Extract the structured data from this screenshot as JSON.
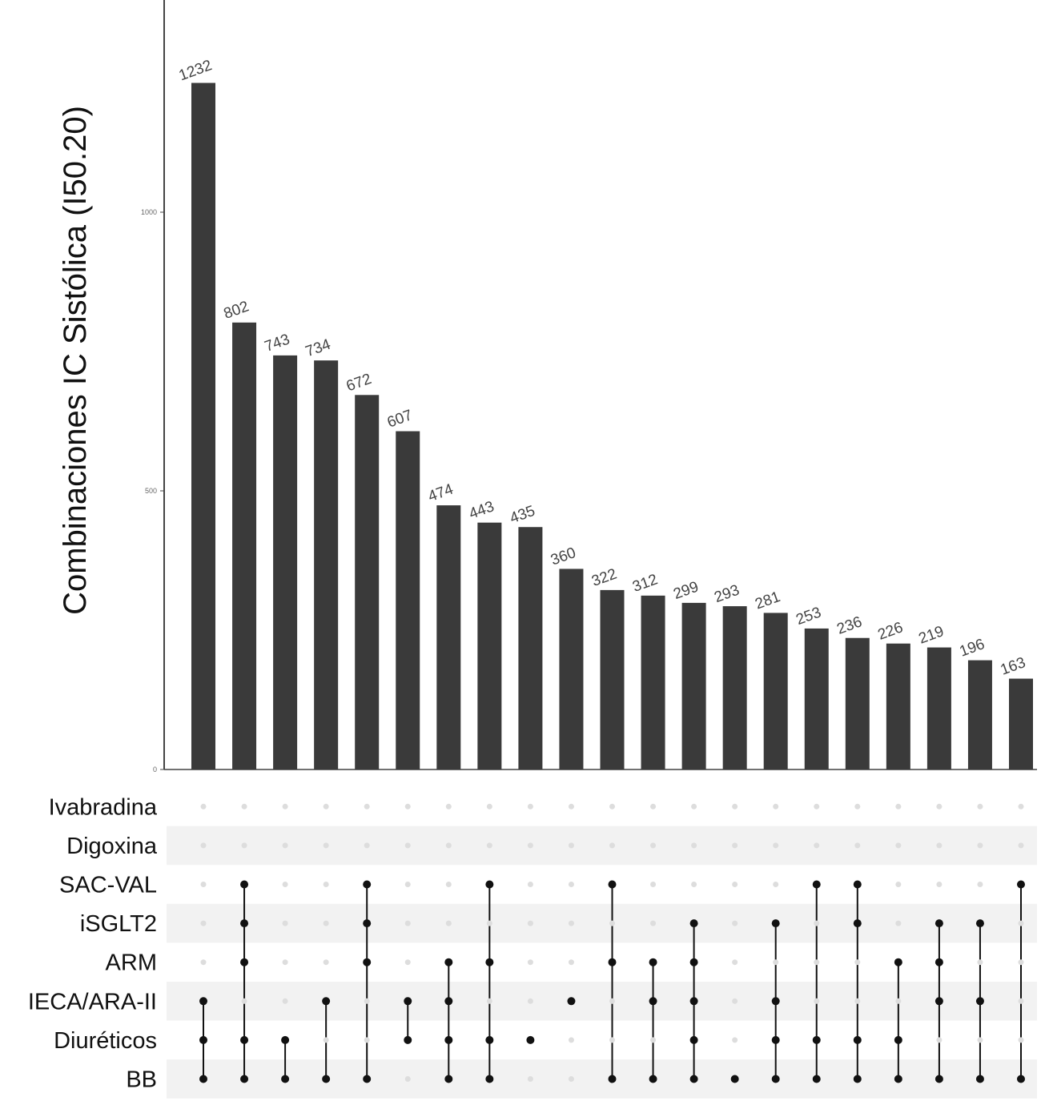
{
  "chart_data": {
    "type": "bar",
    "subtype": "upset",
    "ylabel": "Combinaciones IC Sistólica (I50.20)",
    "y_ticks": [
      0,
      500,
      1000
    ],
    "ylim": [
      0,
      1232
    ],
    "grid": false,
    "values": [
      1232,
      802,
      743,
      734,
      672,
      607,
      474,
      443,
      435,
      360,
      322,
      312,
      299,
      293,
      281,
      253,
      236,
      226,
      219,
      196,
      163
    ],
    "bar_labels": [
      "1232",
      "802",
      "743",
      "734",
      "672",
      "607",
      "474",
      "443",
      "435",
      "360",
      "322",
      "312",
      "299",
      "293",
      "281",
      "253",
      "236",
      "226",
      "219",
      "196",
      "163"
    ],
    "sets": [
      "Ivabradina",
      "Digoxina",
      "SAC-VAL",
      "iSGLT2",
      "ARM",
      "IECA/ARA-II",
      "Diuréticos",
      "BB"
    ],
    "combinations": [
      [
        "IECA/ARA-II",
        "Diuréticos",
        "BB"
      ],
      [
        "SAC-VAL",
        "iSGLT2",
        "ARM",
        "Diuréticos",
        "BB"
      ],
      [
        "Diuréticos",
        "BB"
      ],
      [
        "IECA/ARA-II",
        "BB"
      ],
      [
        "SAC-VAL",
        "iSGLT2",
        "ARM",
        "BB"
      ],
      [
        "IECA/ARA-II",
        "Diuréticos"
      ],
      [
        "ARM",
        "IECA/ARA-II",
        "Diuréticos",
        "BB"
      ],
      [
        "SAC-VAL",
        "ARM",
        "Diuréticos",
        "BB"
      ],
      [
        "Diuréticos"
      ],
      [
        "IECA/ARA-II"
      ],
      [
        "SAC-VAL",
        "ARM",
        "BB"
      ],
      [
        "ARM",
        "IECA/ARA-II",
        "BB"
      ],
      [
        "iSGLT2",
        "ARM",
        "IECA/ARA-II",
        "Diuréticos",
        "BB"
      ],
      [
        "BB"
      ],
      [
        "iSGLT2",
        "IECA/ARA-II",
        "Diuréticos",
        "BB"
      ],
      [
        "SAC-VAL",
        "Diuréticos",
        "BB"
      ],
      [
        "SAC-VAL",
        "iSGLT2",
        "Diuréticos",
        "BB"
      ],
      [
        "ARM",
        "Diuréticos",
        "BB"
      ],
      [
        "iSGLT2",
        "ARM",
        "IECA/ARA-II",
        "BB"
      ],
      [
        "iSGLT2",
        "IECA/ARA-II",
        "BB"
      ],
      [
        "SAC-VAL",
        "BB"
      ]
    ],
    "colors": {
      "bar": "#3a3a3a",
      "dot_active": "#111111",
      "dot_inactive": "#dddddd",
      "stripe": "#f2f2f2",
      "axis": "#444444"
    }
  }
}
